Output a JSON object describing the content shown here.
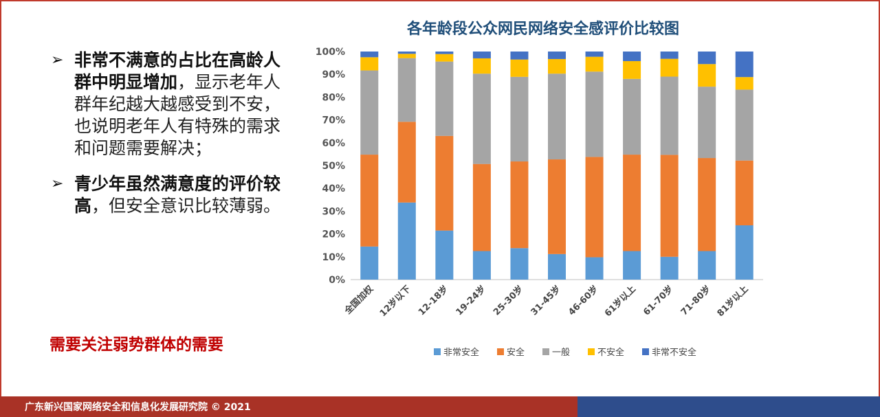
{
  "bullets": [
    {
      "bold": "非常不满意的占比在高龄人群中明显增加",
      "normal": "，显示老年人群年纪越大越感受到不安，也说明老年人有特殊的需求和问题需要解决；"
    },
    {
      "bold": "青少年虽然满意度的评价较高",
      "normal": "，但安全意识比较薄弱。"
    }
  ],
  "arrow_glyph": "➢",
  "callout": "需要关注弱势群体的需要",
  "footer": "广东新兴国家网络安全和信息化发展研究院 © 2021",
  "chart_data": {
    "type": "bar",
    "stacked": true,
    "percent": true,
    "title": "各年龄段公众网民网络安全感评价比较图",
    "categories": [
      "全国加权",
      "12岁以下",
      "12-18岁",
      "19-24岁",
      "25-30岁",
      "31-45岁",
      "46-60岁",
      "61岁以上",
      "61-70岁",
      "71-80岁",
      "81岁以上"
    ],
    "series": [
      {
        "name": "非常安全",
        "color": "#5b9bd5",
        "values": [
          14.5,
          33.8,
          21.5,
          12.5,
          13.8,
          11.2,
          9.8,
          12.5,
          10.0,
          12.5,
          23.8
        ]
      },
      {
        "name": "安全",
        "color": "#ed7d31",
        "values": [
          40.3,
          35.4,
          41.5,
          38.2,
          38.0,
          41.5,
          44.0,
          42.3,
          44.7,
          40.8,
          28.4
        ]
      },
      {
        "name": "一般",
        "color": "#a5a5a5",
        "values": [
          36.9,
          27.9,
          32.6,
          39.6,
          37.1,
          37.6,
          37.4,
          33.2,
          34.3,
          31.3,
          31.1
        ]
      },
      {
        "name": "不安全",
        "color": "#ffc000",
        "values": [
          5.8,
          1.9,
          3.3,
          6.7,
          7.6,
          6.4,
          6.5,
          7.8,
          7.8,
          9.9,
          5.5
        ]
      },
      {
        "name": "非常不安全",
        "color": "#4472c4",
        "values": [
          2.5,
          1.0,
          1.1,
          3.0,
          3.5,
          3.3,
          2.3,
          4.2,
          3.2,
          5.5,
          11.2
        ]
      }
    ],
    "y_ticks": [
      "0%",
      "10%",
      "20%",
      "30%",
      "40%",
      "50%",
      "60%",
      "70%",
      "80%",
      "90%",
      "100%"
    ],
    "ylim": [
      0,
      100
    ],
    "legend": "bottom",
    "grid": false
  }
}
